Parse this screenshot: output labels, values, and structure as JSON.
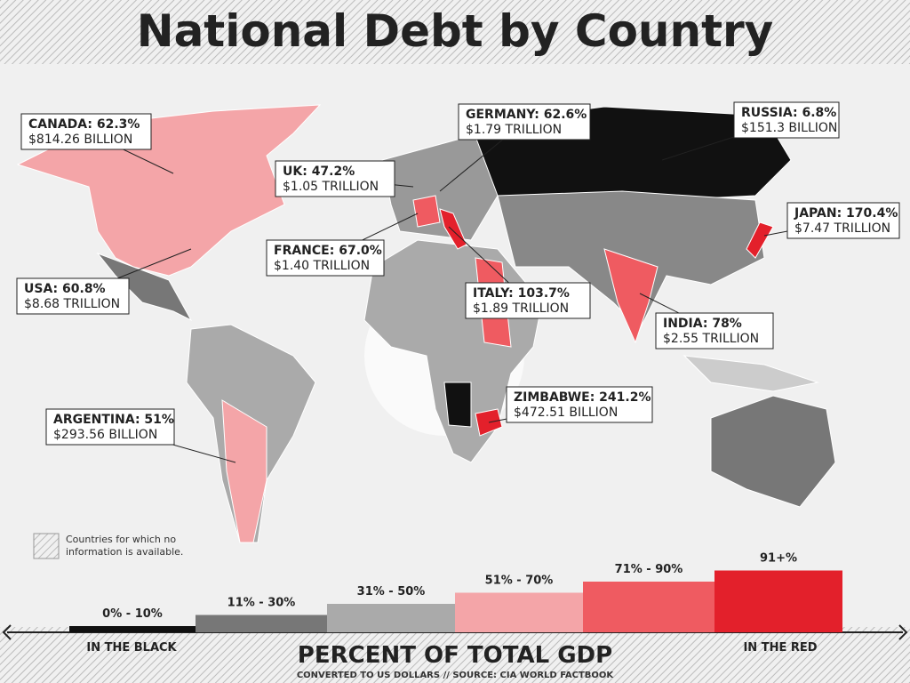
{
  "header": {
    "title": "National Debt by Country"
  },
  "callouts": [
    {
      "country": "CANADA: 62.3%",
      "amount": "$814.26 BILLION"
    },
    {
      "country": "GERMANY: 62.6%",
      "amount": "$1.79 TRILLION"
    },
    {
      "country": "RUSSIA: 6.8%",
      "amount": "$151.3 BILLION"
    },
    {
      "country": "UK: 47.2%",
      "amount": "$1.05 TRILLION"
    },
    {
      "country": "JAPAN: 170.4%",
      "amount": "$7.47 TRILLION"
    },
    {
      "country": "FRANCE: 67.0%",
      "amount": "$1.40 TRILLION"
    },
    {
      "country": "USA: 60.8%",
      "amount": "$8.68 TRILLION"
    },
    {
      "country": "ITALY: 103.7%",
      "amount": "$1.89 TRILLION"
    },
    {
      "country": "INDIA: 78%",
      "amount": "$2.55 TRILLION"
    },
    {
      "country": "ZIMBABWE: 241.2%",
      "amount": "$472.51 BILLION"
    },
    {
      "country": "ARGENTINA: 51%",
      "amount": "$293.56 BILLION"
    }
  ],
  "no_info_note": [
    "Countries for which no",
    "information is available."
  ],
  "legend": {
    "ranges": [
      "0% - 10%",
      "11% - 30%",
      "31% - 50%",
      "51% - 70%",
      "71% - 90%",
      "91+%"
    ],
    "low_end": "IN THE BLACK",
    "high_end": "IN THE RED",
    "title": "PERCENT OF TOTAL GDP",
    "footnote": "CONVERTED TO US DOLLARS  //  SOURCE: CIA WORLD FACTBOOK"
  }
}
